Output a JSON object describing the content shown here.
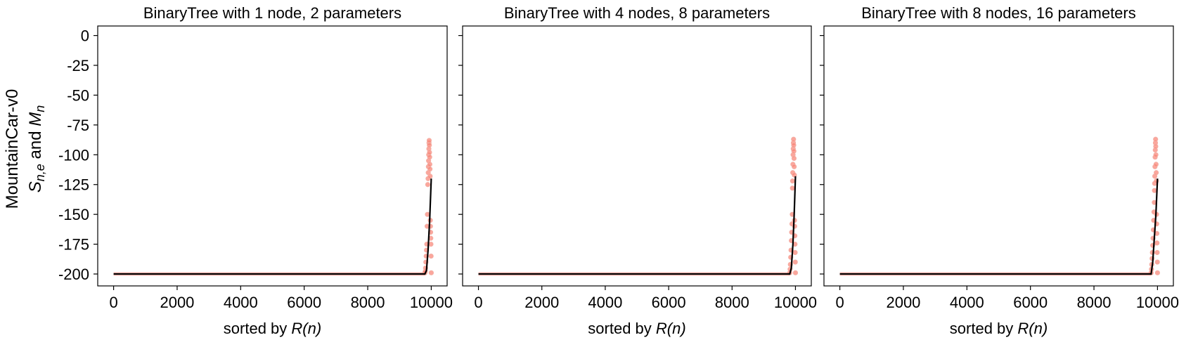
{
  "figure": {
    "row_label": "MountainCar-v0",
    "ylabel_main": "S",
    "ylabel_sub": "n,e",
    "ylabel_join": " and ",
    "ylabel_main2": "M",
    "ylabel_sub2": "n"
  },
  "colors": {
    "scatter": "#fa8072",
    "scatter_edge": "#f2b0a6",
    "mean_line": "#000000",
    "frame": "#000000"
  },
  "chart_data": [
    {
      "type": "scatter",
      "title": "BinaryTree with 1 node, 2 parameters",
      "xlabel_prefix": "sorted by ",
      "xlabel_italic": "R(n)",
      "xlim": [
        -500,
        10500
      ],
      "ylim": [
        -210,
        8
      ],
      "xticks": [
        0,
        2000,
        4000,
        6000,
        8000,
        10000
      ],
      "xtick_labels": [
        "0",
        "2000",
        "4000",
        "6000",
        "8000",
        "10000"
      ],
      "yticks": [
        0,
        -25,
        -50,
        -75,
        -100,
        -125,
        -150,
        -175,
        -200
      ],
      "ytick_labels": [
        "0",
        "-25",
        "-50",
        "-75",
        "-100",
        "-125",
        "-150",
        "-175",
        "-200"
      ],
      "series": [
        {
          "kind": "mean-line",
          "x": [
            0,
            9800,
            9850,
            9900,
            9950,
            10000
          ],
          "y": [
            -200,
            -200,
            -197,
            -180,
            -155,
            -120
          ]
        },
        {
          "kind": "scatter",
          "x": [
            9800,
            9810,
            9820,
            9830,
            9840,
            9850,
            9860,
            9870,
            9880,
            9890,
            9900,
            9905,
            9910,
            9915,
            9920,
            9925,
            9930,
            9935,
            9940,
            9945,
            9950,
            9955,
            9960,
            9965,
            9970,
            9975,
            9980,
            9985,
            9990,
            9995,
            10000
          ],
          "y": [
            -199,
            -198,
            -195,
            -190,
            -185,
            -180,
            -175,
            -160,
            -150,
            -125,
            -120,
            -115,
            -110,
            -105,
            -100,
            -95,
            -90,
            -88,
            -92,
            -98,
            -102,
            -108,
            -112,
            -118,
            -155,
            -160,
            -165,
            -170,
            -175,
            -185,
            -199
          ]
        }
      ]
    },
    {
      "type": "scatter",
      "title": "BinaryTree with 4 nodes, 8 parameters",
      "xlabel_prefix": "sorted by ",
      "xlabel_italic": "R(n)",
      "xlim": [
        -500,
        10500
      ],
      "ylim": [
        -210,
        8
      ],
      "xticks": [
        0,
        2000,
        4000,
        6000,
        8000,
        10000
      ],
      "xtick_labels": [
        "0",
        "2000",
        "4000",
        "6000",
        "8000",
        "10000"
      ],
      "yticks": [
        0,
        -25,
        -50,
        -75,
        -100,
        -125,
        -150,
        -175,
        -200
      ],
      "ytick_labels": [
        "",
        "",
        "",
        "",
        "",
        "",
        "",
        "",
        ""
      ],
      "series": [
        {
          "kind": "mean-line",
          "x": [
            0,
            9820,
            9870,
            9920,
            9960,
            10000
          ],
          "y": [
            -200,
            -200,
            -195,
            -175,
            -150,
            -118
          ]
        },
        {
          "kind": "scatter",
          "x": [
            9820,
            9830,
            9840,
            9850,
            9860,
            9870,
            9880,
            9890,
            9900,
            9905,
            9910,
            9915,
            9920,
            9925,
            9930,
            9935,
            9940,
            9945,
            9950,
            9955,
            9960,
            9965,
            9970,
            9975,
            9980,
            9985,
            9990,
            9995,
            10000
          ],
          "y": [
            -199,
            -196,
            -192,
            -186,
            -180,
            -172,
            -165,
            -158,
            -150,
            -128,
            -122,
            -115,
            -108,
            -100,
            -95,
            -90,
            -87,
            -92,
            -97,
            -103,
            -110,
            -117,
            -155,
            -160,
            -168,
            -175,
            -182,
            -190,
            -199
          ]
        }
      ]
    },
    {
      "type": "scatter",
      "title": "BinaryTree with 8 nodes, 16 parameters",
      "xlabel_prefix": "sorted by ",
      "xlabel_italic": "R(n)",
      "xlim": [
        -500,
        10500
      ],
      "ylim": [
        -210,
        8
      ],
      "xticks": [
        0,
        2000,
        4000,
        6000,
        8000,
        10000
      ],
      "xtick_labels": [
        "0",
        "2000",
        "4000",
        "6000",
        "8000",
        "10000"
      ],
      "yticks": [
        0,
        -25,
        -50,
        -75,
        -100,
        -125,
        -150,
        -175,
        -200
      ],
      "ytick_labels": [
        "",
        "",
        "",
        "",
        "",
        "",
        "",
        "",
        ""
      ],
      "series": [
        {
          "kind": "mean-line",
          "x": [
            0,
            9800,
            9850,
            9900,
            9950,
            10000
          ],
          "y": [
            -200,
            -200,
            -190,
            -170,
            -150,
            -120
          ]
        },
        {
          "kind": "scatter",
          "x": [
            9800,
            9810,
            9820,
            9830,
            9840,
            9850,
            9860,
            9870,
            9880,
            9890,
            9900,
            9905,
            9910,
            9915,
            9920,
            9925,
            9930,
            9935,
            9940,
            9945,
            9950,
            9955,
            9960,
            9965,
            9970,
            9975,
            9980,
            9985,
            9990,
            9995,
            10000
          ],
          "y": [
            -199,
            -196,
            -192,
            -187,
            -182,
            -176,
            -170,
            -163,
            -155,
            -148,
            -140,
            -130,
            -124,
            -118,
            -110,
            -102,
            -96,
            -90,
            -87,
            -93,
            -100,
            -108,
            -115,
            -122,
            -150,
            -158,
            -166,
            -174,
            -182,
            -190,
            -199
          ]
        }
      ]
    }
  ]
}
